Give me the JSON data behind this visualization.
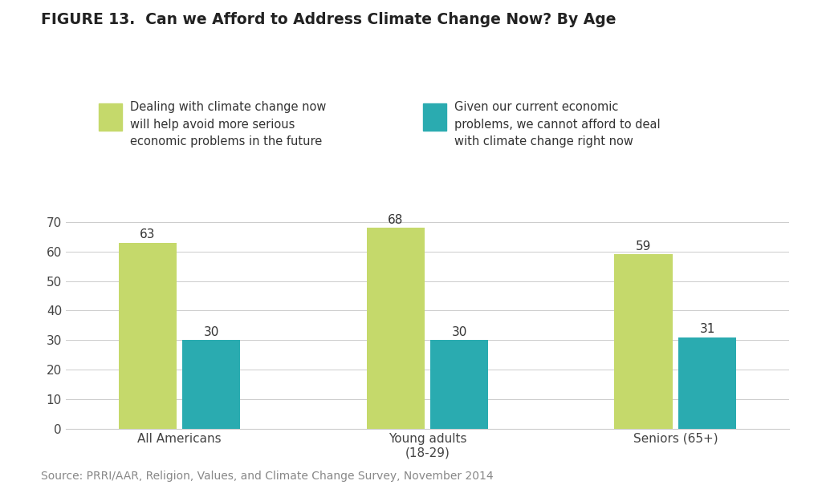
{
  "title": "FIGURE 13.  Can we Afford to Address Climate Change Now? By Age",
  "categories": [
    "All Americans",
    "Young adults\n(18-29)",
    "Seniors (65+)"
  ],
  "green_values": [
    63,
    68,
    59
  ],
  "teal_values": [
    30,
    30,
    31
  ],
  "green_color": "#c5d96b",
  "teal_color": "#2aabb0",
  "legend_green": "Dealing with climate change now\nwill help avoid more serious\neconomic problems in the future",
  "legend_teal": "Given our current economic\nproblems, we cannot afford to deal\nwith climate change right now",
  "source_text": "Source: PRRI/AAR, Religion, Values, and Climate Change Survey, November 2014",
  "ylim": [
    0,
    75
  ],
  "yticks": [
    0,
    10,
    20,
    30,
    40,
    50,
    60,
    70
  ],
  "bar_width": 0.28,
  "background_color": "#ffffff",
  "title_fontsize": 13.5,
  "tick_fontsize": 11,
  "source_fontsize": 10,
  "legend_fontsize": 10.5,
  "value_fontsize": 11
}
